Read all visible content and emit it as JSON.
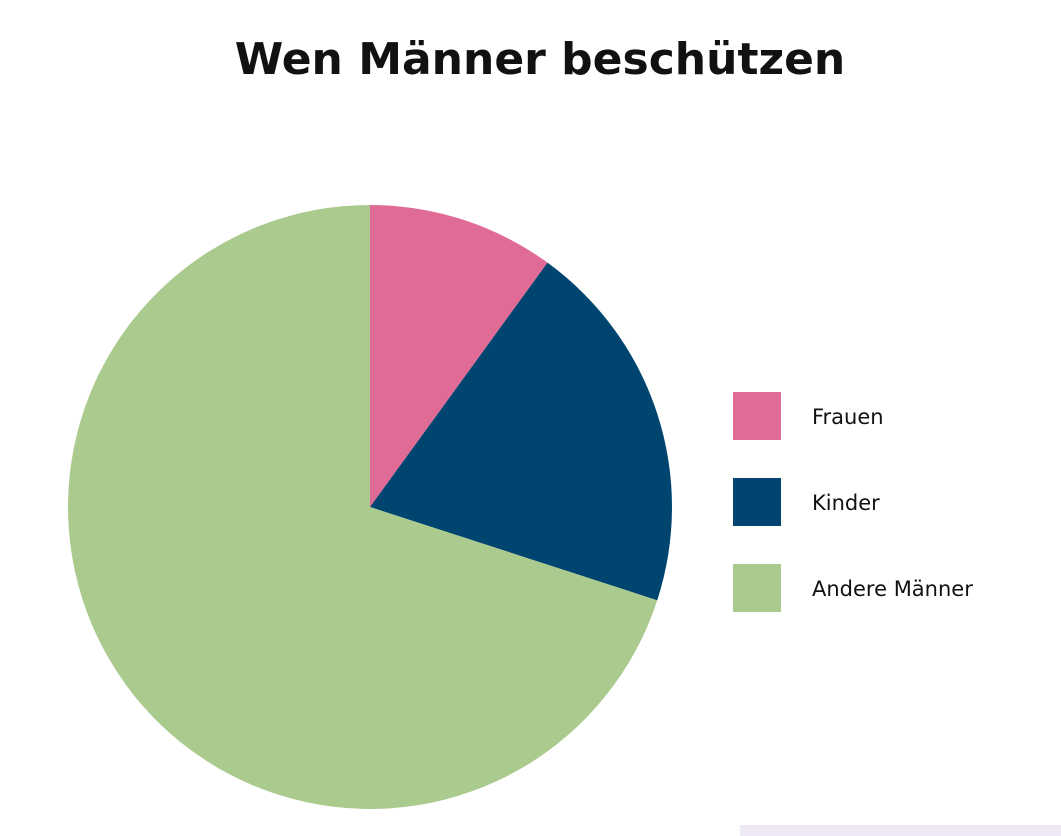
{
  "chart_data": {
    "type": "pie",
    "title": "Wen Männer beschützen",
    "categories": [
      "Frauen",
      "Kinder",
      "Andere Männer"
    ],
    "values": [
      10,
      20,
      70
    ],
    "colors": [
      "#e06b96",
      "#004570",
      "#abca8e"
    ],
    "legend": "right"
  }
}
